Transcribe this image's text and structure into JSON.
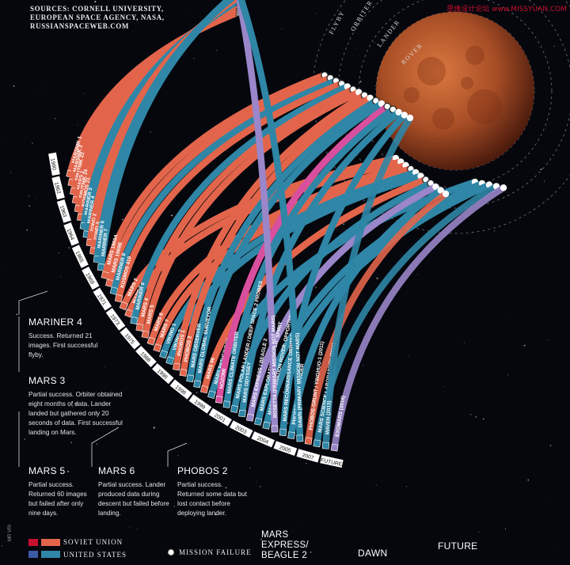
{
  "watermark": "思缘设计论坛 www.MISSYUAN.COM",
  "side_label": "MR VRI",
  "sources": [
    "SOURCES: CORNELL UNIVERSITY,",
    "EUROPEAN SPACE AGENCY, NASA,",
    "RUSSIANSPACEWEB.COM"
  ],
  "colors": {
    "soviet": "#e2654b",
    "us": "#2f86a6",
    "esa": "#9a86c9",
    "japan": "#d84f9e",
    "india": "#f08a2c",
    "background": "#05070d",
    "mars": "#b5532a"
  },
  "legend": {
    "soviet": "SOVIET UNION",
    "us": "UNITED STATES",
    "failure": "MISSION FAILURE"
  },
  "chart_data": {
    "type": "radial-timeline",
    "ring_labels": [
      "FLYBY",
      "ORBITER",
      "LANDER",
      "ROVER"
    ],
    "year_labels": [
      "1960",
      "1962",
      "1963",
      "1964",
      "1965",
      "1969",
      "1971",
      "1973",
      "1975",
      "1988",
      "1996",
      "1998",
      "1999",
      "2001",
      "2003",
      "2004",
      "2005",
      "2007",
      "FUTURE"
    ],
    "missions": [
      {
        "name": "MARSNIK 1",
        "agency": "soviet",
        "type": "flyby",
        "failure": true
      },
      {
        "name": "MARSNIK 2",
        "agency": "soviet",
        "type": "flyby",
        "failure": true
      },
      {
        "name": "SPUTNIK 22",
        "agency": "soviet",
        "type": "flyby",
        "failure": true
      },
      {
        "name": "MARS 1",
        "agency": "soviet",
        "type": "flyby",
        "failure": true
      },
      {
        "name": "SPUTNIK 24",
        "agency": "soviet",
        "type": "flyby",
        "failure": true
      },
      {
        "name": "KOSMOS 21",
        "agency": "soviet",
        "type": "flyby",
        "failure": true
      },
      {
        "name": "MARINER 3",
        "agency": "us",
        "type": "flyby",
        "failure": true
      },
      {
        "name": "MARINER 4",
        "agency": "us",
        "type": "flyby",
        "failure": false
      },
      {
        "name": "ZOND 2",
        "agency": "soviet",
        "type": "flyby",
        "failure": true
      },
      {
        "name": "ZOND 3",
        "agency": "soviet",
        "type": "flyby",
        "failure": false,
        "note": "(PRIMARY MISSION NOT MARS)"
      },
      {
        "name": "MARINER 6",
        "agency": "us",
        "type": "flyby",
        "failure": false
      },
      {
        "name": "MARINER 7",
        "agency": "us",
        "type": "flyby",
        "failure": false
      },
      {
        "name": "MARS 1969A",
        "agency": "soviet",
        "type": "orbiter",
        "failure": true
      },
      {
        "name": "MARS 1969B",
        "agency": "soviet",
        "type": "orbiter",
        "failure": true
      },
      {
        "name": "MARINER 8",
        "agency": "us",
        "type": "orbiter",
        "failure": true
      },
      {
        "name": "KOSMOS 419",
        "agency": "soviet",
        "type": "orbiter",
        "failure": true
      },
      {
        "name": "MARS 2",
        "agency": "soviet",
        "type": "lander",
        "failure": false
      },
      {
        "name": "MARS 3",
        "agency": "soviet",
        "type": "lander",
        "failure": false
      },
      {
        "name": "MARINER 9",
        "agency": "us",
        "type": "orbiter",
        "failure": false
      },
      {
        "name": "MARS 4",
        "agency": "soviet",
        "type": "orbiter",
        "failure": true
      },
      {
        "name": "MARS 5",
        "agency": "soviet",
        "type": "orbiter",
        "failure": false
      },
      {
        "name": "MARS 6",
        "agency": "soviet",
        "type": "lander",
        "failure": false
      },
      {
        "name": "MARS 7",
        "agency": "soviet",
        "type": "lander",
        "failure": true
      },
      {
        "name": "VIKING 1",
        "agency": "us",
        "type": "lander",
        "failure": false
      },
      {
        "name": "VIKING 2",
        "agency": "us",
        "type": "lander",
        "failure": false
      },
      {
        "name": "PHOBOS 1",
        "agency": "soviet",
        "type": "orbiter",
        "failure": true
      },
      {
        "name": "PHOBOS 2",
        "agency": "soviet",
        "type": "orbiter",
        "failure": false
      },
      {
        "name": "MARS OBSERVER",
        "agency": "us",
        "type": "orbiter",
        "failure": true
      },
      {
        "name": "MARS GLOBAL SURVEYOR",
        "agency": "us",
        "type": "orbiter",
        "failure": false
      },
      {
        "name": "MARS 96",
        "agency": "soviet",
        "type": "lander",
        "failure": true
      },
      {
        "name": "MARS PATHFINDER",
        "agency": "us",
        "type": "rover",
        "failure": false
      },
      {
        "name": "NOZOMI",
        "agency": "japan",
        "type": "orbiter",
        "failure": true
      },
      {
        "name": "MARS CLIMATE ORBITER",
        "agency": "us",
        "type": "orbiter",
        "failure": true
      },
      {
        "name": "MARS POLAR LANDER / DEEP SPACE 2 PROBES",
        "agency": "us",
        "type": "lander",
        "failure": true
      },
      {
        "name": "MARS ODYSSEY",
        "agency": "us",
        "type": "orbiter",
        "failure": false
      },
      {
        "name": "MARS EXPRESS / BEAGLE 2",
        "agency": "esa",
        "type": "lander",
        "failure": false
      },
      {
        "name": "MARS EXPLORATION ROVER: SPIRIT",
        "agency": "us",
        "type": "rover",
        "failure": false
      },
      {
        "name": "MARS EXPLORATION ROVER: OPPORTUNITY",
        "agency": "us",
        "type": "rover",
        "failure": false
      },
      {
        "name": "ROSETTA (PRIMARY MISSION NOT MARS)",
        "agency": "esa",
        "type": "flyby",
        "failure": false
      },
      {
        "name": "MARS RECONNAISSANCE ORBITER",
        "agency": "us",
        "type": "orbiter",
        "failure": false
      },
      {
        "name": "PHOENIX MARS LANDER",
        "agency": "us",
        "type": "lander",
        "failure": false
      },
      {
        "name": "DAWN (PRIMARY MISSION NOT MARS)",
        "agency": "us",
        "type": "flyby",
        "failure": false
      },
      {
        "name": "PHOBOS-GRUNT / YINGHUO-1 (2011)",
        "agency": "soviet",
        "type": "lander",
        "failure": false,
        "future": true
      },
      {
        "name": "MARS SCIENCE LABORATORY (2011)",
        "agency": "us",
        "type": "rover",
        "failure": false,
        "future": true
      },
      {
        "name": "MAVEN (2013)",
        "agency": "us",
        "type": "orbiter",
        "failure": false,
        "future": true
      },
      {
        "name": "EXOMARS (2016)",
        "agency": "esa",
        "type": "rover",
        "failure": false,
        "future": true
      }
    ]
  },
  "callouts": [
    {
      "title": "MARINER 4",
      "body": "Success. Returned 21 images. First successful flyby."
    },
    {
      "title": "MARS 3",
      "body": "Partial success. Orbiter obtained eight months of data. Lander landed but gathered only 20 seconds of data. First successful landing on Mars."
    },
    {
      "title": "MARS 5",
      "body": "Partial success. Returned 60 images but failed after only nine days."
    },
    {
      "title": "MARS 6",
      "body": "Partial success. Lander produced data during descent but failed before landing."
    },
    {
      "title": "PHOBOS 2",
      "body": "Partial success. Returned some data but lost contact before deploying lander."
    },
    {
      "title": "MARS EXPRESS/ BEAGLE 2",
      "body": ""
    },
    {
      "title": "DAWN",
      "body": ""
    },
    {
      "title": "FUTURE",
      "body": ""
    }
  ]
}
